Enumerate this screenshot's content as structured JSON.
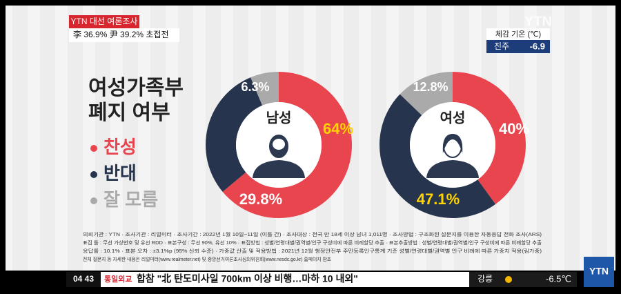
{
  "header": {
    "tag": "YTN 대선 여론조사",
    "subtitle": "李 36.9% 尹 39.2% 초접전"
  },
  "weather_top": {
    "logo": "YTN",
    "label": "체감 기온 (℃)",
    "city": "진주",
    "temp": "-6.9"
  },
  "headline": [
    "여성가족부",
    "폐지 여부"
  ],
  "chart_data": [
    {
      "type": "pie",
      "title": "남성",
      "categories": [
        "찬성",
        "반대",
        "잘 모름"
      ],
      "values": [
        64,
        29.8,
        6.3
      ],
      "value_labels": [
        "64%",
        "29.8%",
        "6.3%"
      ],
      "colors": [
        "#e8454f",
        "#27344d",
        "#aaaaaa"
      ],
      "label_colors": [
        "#ffd400",
        "#ffffff",
        "#ffffff"
      ]
    },
    {
      "type": "pie",
      "title": "여성",
      "values": [
        40,
        47.1,
        12.8
      ],
      "value_labels": [
        "40%",
        "47.1%",
        "12.8%"
      ],
      "colors": [
        "#e8454f",
        "#27344d",
        "#aaaaaa"
      ],
      "label_colors": [
        "#ffffff",
        "#ffd400",
        "#ffffff"
      ]
    }
  ],
  "notes": [
    "의뢰기관 : YTN   · 조사기관 : 리얼미터   · 조사기간 : 2022년 1월 10일~11일 (이틀 간)   · 조사대상 : 전국 만 18세 이상 남녀 1,011명   · 조사방법 : 구조화된 설문지를 이용한 자동응답 전화 조사(ARS)",
    "표집 틀 : 무선 가상번호 및 유선 RDD   · 표본구성 : 무선 90%, 유선 10%   · 표집방법 : 성별/연령대별/권역별/인구 구성비에 따른 비례할당 추출   · 표본추출방법 : 성별/연령대별/권역별/인구 구성비에 따른 비례할당 추출",
    "응답률 : 10.1%   · 표본 오차 : ±3.1%p (95% 신뢰 수준)   · 가중값 산출 및 적용방법 : 2021년 12월 행정안전부 주민등록인구통계 기준 성별/연령대별/권역별 인구 비례에 따른 가중치 적용(림가중)",
    "전체 질문지 등 자세한 내용은 리얼미터(www.realmeter.net) 및 중앙선거여론조사심의위원회(www.nesdc.go.kr) 홈페이지 참조"
  ],
  "ticker": {
    "time": "04 43",
    "section": "통일외교",
    "headline": "합참 \"北 탄도미사일 700km 이상 비행…마하 10 내외\"",
    "city": "강릉",
    "temp": "-6.5℃"
  },
  "logo": "YTN"
}
